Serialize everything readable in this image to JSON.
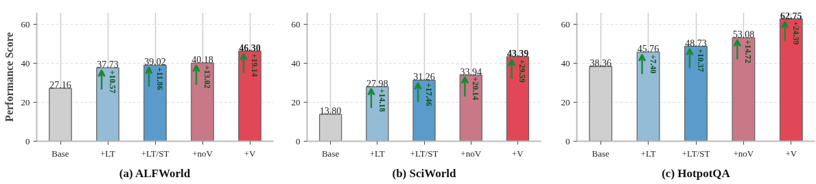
{
  "chart_data": [
    {
      "type": "bar",
      "title": "(a) ALFWorld",
      "ylabel": "Performance Score",
      "categories": [
        "Base",
        "+LT",
        "+LT/ST",
        "+noV",
        "+V"
      ],
      "values": [
        27.16,
        37.73,
        39.02,
        40.18,
        46.3
      ],
      "value_labels": [
        "27.16",
        "37.73",
        "39.02",
        "40.18",
        "46.30"
      ],
      "colors": [
        "#cfcfcf",
        "#95bcd6",
        "#5b9bcc",
        "#c97888",
        "#e04858"
      ],
      "ylim": [
        0,
        66
      ],
      "yticks": [
        0,
        20,
        40,
        60
      ],
      "grid": true,
      "annotations": [
        {
          "text": "+10.57",
          "x": "+LT",
          "y": 36.5
        },
        {
          "text": "+11.86",
          "x": "+LT/ST",
          "y": 38
        },
        {
          "text": "+13.02",
          "x": "+noV",
          "y": 39
        },
        {
          "text": "+19.14",
          "x": "+V",
          "y": 45
        }
      ]
    },
    {
      "type": "bar",
      "title": "(b) SciWorld",
      "categories": [
        "Base",
        "+LT",
        "+LT/ST",
        "+noV",
        "+V"
      ],
      "values": [
        13.8,
        27.98,
        31.26,
        33.94,
        43.39
      ],
      "value_labels": [
        "13.80",
        "27.98",
        "31.26",
        "33.94",
        "43.39"
      ],
      "colors": [
        "#cfcfcf",
        "#95bcd6",
        "#5b9bcc",
        "#c97888",
        "#e04858"
      ],
      "ylim": [
        0,
        66
      ],
      "yticks": [
        0,
        20,
        40,
        60
      ],
      "grid": true,
      "annotations": [
        {
          "text": "+14.18",
          "x": "+LT",
          "y": 27
        },
        {
          "text": "+17.46",
          "x": "+LT/ST",
          "y": 30
        },
        {
          "text": "+20.14",
          "x": "+noV",
          "y": 33
        },
        {
          "text": "+29.59",
          "x": "+V",
          "y": 42
        }
      ]
    },
    {
      "type": "bar",
      "title": "(c) HotpotQA",
      "categories": [
        "Base",
        "+LT",
        "+LT/ST",
        "+noV",
        "+V"
      ],
      "values": [
        38.36,
        45.76,
        48.73,
        53.08,
        62.75
      ],
      "value_labels": [
        "38.36",
        "45.76",
        "48.73",
        "53.08",
        "62.75"
      ],
      "colors": [
        "#cfcfcf",
        "#95bcd6",
        "#5b9bcc",
        "#c97888",
        "#e04858"
      ],
      "ylim": [
        0,
        66
      ],
      "yticks": [
        0,
        20,
        40,
        60
      ],
      "grid": true,
      "annotations": [
        {
          "text": "+7.40",
          "x": "+LT",
          "y": 44.5
        },
        {
          "text": "+10.37",
          "x": "+LT/ST",
          "y": 47.5
        },
        {
          "text": "+14.72",
          "x": "+noV",
          "y": 52
        },
        {
          "text": "+24.39",
          "x": "+V",
          "y": 61.5
        }
      ]
    }
  ]
}
